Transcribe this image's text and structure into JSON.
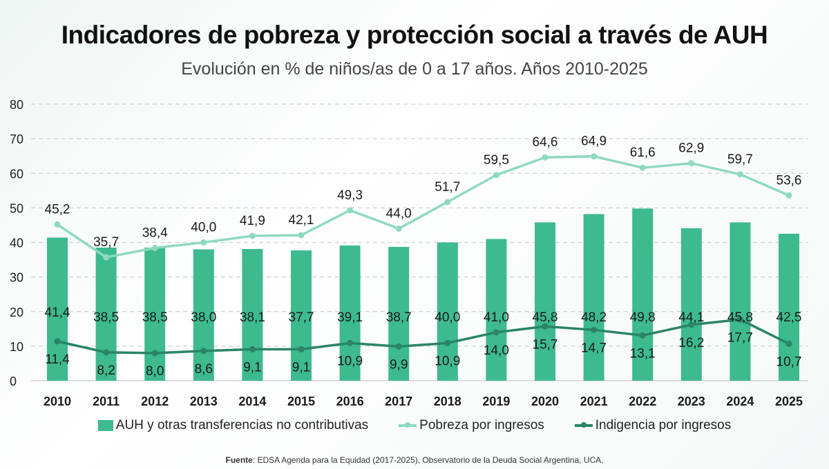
{
  "chart_data": {
    "type": "bar+line",
    "title": "Indicadores de pobreza y protección social a través de AUH",
    "subtitle": "Evolución en % de niños/as de 0 a 17 años. Años 2010-2025",
    "categories": [
      "2010",
      "2011",
      "2012",
      "2013",
      "2014",
      "2015",
      "2016",
      "2017",
      "2018",
      "2019",
      "2020",
      "2021",
      "2022",
      "2023",
      "2024",
      "2025"
    ],
    "ylim": [
      0,
      80
    ],
    "yticks": [
      0,
      10,
      20,
      30,
      40,
      50,
      60,
      70,
      80
    ],
    "grid": true,
    "legend_placement": "bottom",
    "series": [
      {
        "name": "AUH y otras transferencias no contributivas",
        "type": "bar",
        "color": "#3dba8e",
        "values": [
          41.4,
          38.5,
          38.5,
          38.0,
          38.1,
          37.7,
          39.1,
          38.7,
          40.0,
          41.0,
          45.8,
          48.2,
          49.8,
          44.1,
          45.8,
          42.5
        ]
      },
      {
        "name": "Pobreza por ingresos",
        "type": "line",
        "color": "#8fd9c0",
        "values": [
          45.2,
          35.7,
          38.4,
          40.0,
          41.9,
          42.1,
          49.3,
          44.0,
          51.7,
          59.5,
          64.6,
          64.9,
          61.6,
          62.9,
          59.7,
          53.6
        ]
      },
      {
        "name": "Indigencia por ingresos",
        "type": "line",
        "color": "#2a8466",
        "values": [
          11.4,
          8.2,
          8.0,
          8.6,
          9.1,
          9.1,
          10.9,
          9.9,
          10.9,
          14.0,
          15.7,
          14.7,
          13.1,
          16.2,
          17.7,
          10.7
        ]
      }
    ],
    "source_label": "Fuente",
    "source_text": ": EDSA Agenda para la Equidad (2017-2025), Observatorio de la Deuda Social Argentina, UCA."
  }
}
